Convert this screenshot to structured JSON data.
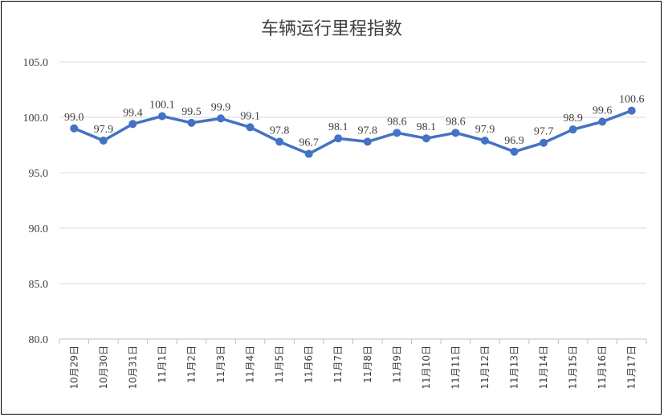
{
  "chart_data": {
    "type": "line",
    "title": "车辆运行里程指数",
    "categories": [
      "10月29日",
      "10月30日",
      "10月31日",
      "11月1日",
      "11月2日",
      "11月3日",
      "11月4日",
      "11月5日",
      "11月6日",
      "11月7日",
      "11月8日",
      "11月9日",
      "11月10日",
      "11月11日",
      "11月12日",
      "11月13日",
      "11月14日",
      "11月15日",
      "11月16日",
      "11月17日"
    ],
    "values": [
      99.0,
      97.9,
      99.4,
      100.1,
      99.5,
      99.9,
      99.1,
      97.8,
      96.7,
      98.1,
      97.8,
      98.6,
      98.1,
      98.6,
      97.9,
      96.9,
      97.7,
      98.9,
      99.6,
      100.6
    ],
    "value_labels": [
      "99.0",
      "97.9",
      "99.4",
      "100.1",
      "99.5",
      "99.9",
      "99.1",
      "97.8",
      "96.7",
      "98.1",
      "97.8",
      "98.6",
      "98.1",
      "98.6",
      "97.9",
      "96.9",
      "97.7",
      "98.9",
      "99.6",
      "100.6"
    ],
    "ylim": [
      80.0,
      105.0
    ],
    "yticks": [
      "80.0",
      "85.0",
      "90.0",
      "95.0",
      "100.0",
      "105.0"
    ],
    "grid": true,
    "legend": "none",
    "series_color": "#4472c4"
  }
}
